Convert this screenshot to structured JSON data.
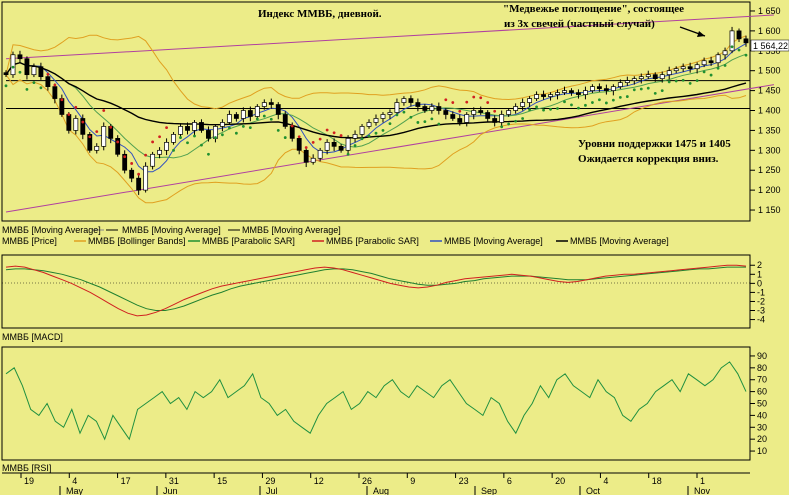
{
  "chart_data": {
    "type": "candlestick",
    "title": "Индекс ММВБ, дневной.",
    "annotations": {
      "pattern_line1": "\"Медвежье поглощение\", состоящее",
      "pattern_line2": "из 3х свечей (частный случай)",
      "support_line1": "Уровни поддержки 1475 и 1405",
      "support_line2": "Ожидается коррекция вниз."
    },
    "last_price_label": "1 564,22",
    "price_panel": {
      "yticks": [
        1150,
        1200,
        1250,
        1300,
        1350,
        1400,
        1450,
        1500,
        1550,
        1600,
        1650
      ],
      "ytick_labels": [
        "1 150",
        "1 200",
        "1 250",
        "1 300",
        "1 350",
        "1 400",
        "1 450",
        "1 500",
        "1 550",
        "1 600",
        "1 650"
      ],
      "ylim": [
        1130,
        1665
      ],
      "support_levels": [
        1475,
        1405
      ],
      "channel_upper": [
        [
          0,
          1530
        ],
        [
          110,
          1640
        ]
      ],
      "channel_lower": [
        [
          0,
          1145
        ],
        [
          110,
          1465
        ]
      ],
      "legend_row1": [
        "ММВБ [Moving Average]",
        "ММВБ [Moving Average]",
        "ММВБ [Moving Average]"
      ],
      "legend_row2": [
        "ММВБ [Price]",
        "ММВБ [Bollinger Bands]",
        "ММВБ [Parabolic SAR]",
        "ММВБ [Parabolic SAR]",
        "ММВБ [Moving Average]",
        "ММВБ [Moving Average]"
      ],
      "close": [
        1490,
        1540,
        1530,
        1490,
        1510,
        1485,
        1460,
        1430,
        1390,
        1350,
        1380,
        1340,
        1300,
        1310,
        1360,
        1330,
        1290,
        1250,
        1230,
        1200,
        1260,
        1290,
        1300,
        1320,
        1340,
        1360,
        1350,
        1370,
        1350,
        1330,
        1360,
        1370,
        1390,
        1380,
        1400,
        1385,
        1410,
        1420,
        1415,
        1390,
        1360,
        1330,
        1300,
        1270,
        1280,
        1300,
        1320,
        1310,
        1300,
        1330,
        1340,
        1360,
        1370,
        1380,
        1390,
        1395,
        1420,
        1430,
        1420,
        1410,
        1400,
        1410,
        1400,
        1390,
        1380,
        1370,
        1390,
        1400,
        1395,
        1380,
        1370,
        1390,
        1400,
        1410,
        1420,
        1430,
        1440,
        1435,
        1440,
        1445,
        1450,
        1445,
        1440,
        1450,
        1460,
        1455,
        1450,
        1460,
        1470,
        1475,
        1480,
        1485,
        1490,
        1480,
        1490,
        1500,
        1505,
        1510,
        1505,
        1515,
        1525,
        1520,
        1540,
        1550,
        1600,
        1580,
        1570
      ]
    },
    "macd_panel": {
      "name": "ММВБ [MACD]",
      "yticks": [
        2,
        1,
        0,
        -1,
        -2,
        -3,
        -4
      ],
      "ylim": [
        -4.6,
        2.8
      ],
      "macd": [
        1.8,
        1.9,
        1.8,
        1.5,
        1.2,
        0.8,
        0.4,
        0.0,
        -0.5,
        -1.0,
        -1.6,
        -2.2,
        -2.8,
        -3.3,
        -3.6,
        -3.5,
        -3.2,
        -2.8,
        -2.3,
        -1.8,
        -1.4,
        -1.0,
        -0.6,
        -0.3,
        -0.1,
        0.1,
        0.3,
        0.5,
        0.7,
        0.9,
        1.1,
        1.3,
        1.5,
        1.7,
        1.8,
        1.7,
        1.5,
        1.2,
        0.9,
        0.6,
        0.3,
        0.0,
        -0.2,
        -0.4,
        -0.5,
        -0.4,
        -0.2,
        0.1,
        0.3,
        0.5,
        0.6,
        0.7,
        0.8,
        0.9,
        1.0,
        0.9,
        0.8,
        0.6,
        0.4,
        0.2,
        0.1,
        0.2,
        0.4,
        0.6,
        0.8,
        0.9,
        1.0,
        1.0,
        1.1,
        1.2,
        1.3,
        1.4,
        1.5,
        1.6,
        1.7,
        1.8,
        1.9,
        2.0,
        2.0,
        1.9
      ],
      "signal": [
        1.5,
        1.6,
        1.6,
        1.5,
        1.4,
        1.2,
        1.0,
        0.7,
        0.4,
        0.0,
        -0.4,
        -0.9,
        -1.4,
        -1.9,
        -2.4,
        -2.8,
        -3.0,
        -3.0,
        -2.8,
        -2.5,
        -2.1,
        -1.7,
        -1.3,
        -1.0,
        -0.6,
        -0.3,
        -0.1,
        0.1,
        0.3,
        0.5,
        0.7,
        0.9,
        1.1,
        1.3,
        1.5,
        1.6,
        1.6,
        1.5,
        1.3,
        1.1,
        0.8,
        0.5,
        0.3,
        0.1,
        -0.1,
        -0.2,
        -0.2,
        -0.1,
        0.0,
        0.2,
        0.3,
        0.5,
        0.6,
        0.7,
        0.8,
        0.8,
        0.8,
        0.7,
        0.6,
        0.5,
        0.4,
        0.4,
        0.4,
        0.5,
        0.6,
        0.7,
        0.8,
        0.9,
        1.0,
        1.1,
        1.2,
        1.3,
        1.4,
        1.5,
        1.6,
        1.6,
        1.7,
        1.8,
        1.8,
        1.8
      ]
    },
    "rsi_panel": {
      "name": "ММВБ [RSI]",
      "yticks": [
        90,
        80,
        70,
        60,
        50,
        40,
        30,
        20,
        10
      ],
      "ylim": [
        5,
        95
      ],
      "values": [
        75,
        80,
        65,
        45,
        40,
        50,
        35,
        30,
        45,
        25,
        40,
        35,
        20,
        40,
        30,
        20,
        45,
        50,
        55,
        60,
        50,
        55,
        45,
        60,
        55,
        60,
        70,
        55,
        60,
        65,
        75,
        55,
        50,
        40,
        45,
        35,
        30,
        25,
        40,
        50,
        55,
        60,
        45,
        50,
        60,
        55,
        65,
        70,
        60,
        55,
        65,
        60,
        55,
        65,
        70,
        60,
        50,
        45,
        40,
        55,
        50,
        35,
        25,
        40,
        50,
        65,
        55,
        70,
        75,
        65,
        60,
        55,
        70,
        60,
        55,
        40,
        35,
        45,
        50,
        60,
        65,
        70,
        60,
        75,
        70,
        65,
        70,
        80,
        85,
        75,
        60
      ]
    },
    "x_axis": {
      "day_labels": [
        "19",
        "4",
        "17",
        "31",
        "15",
        "29",
        "12",
        "26",
        "9",
        "23",
        "6",
        "20",
        "4",
        "18",
        "1"
      ],
      "month_labels": [
        "May",
        "Jun",
        "Jul",
        "Aug",
        "Sep",
        "Oct",
        "Nov"
      ]
    },
    "colors": {
      "background": "#ecec88",
      "candle_up": "#ffffff",
      "candle_down": "#000000",
      "channel": "#b040a0",
      "bollinger": "#e0a020",
      "sar_green": "#209030",
      "sar_red": "#d02020",
      "ma_fast": "#3050c0",
      "ma_slow": "#000000",
      "macd_line": "#d02020",
      "signal_line": "#208030",
      "rsi_line": "#209040"
    }
  }
}
